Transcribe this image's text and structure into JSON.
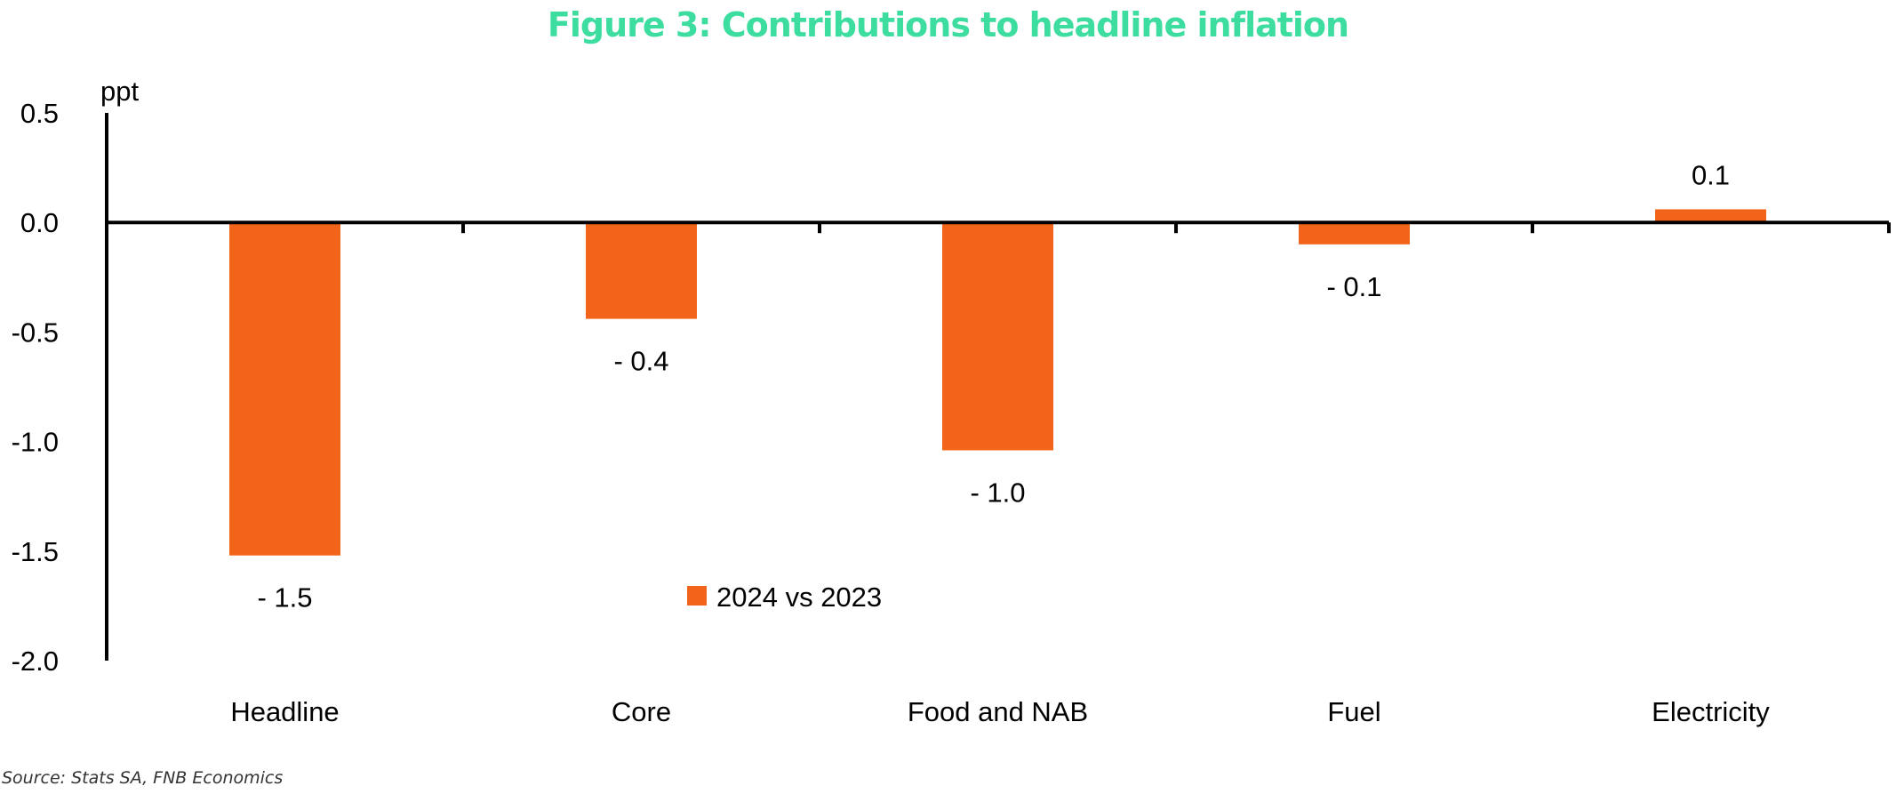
{
  "title": "Figure 3: Contributions to headline inflation",
  "source": "Source: Stats SA, FNB Economics",
  "chart_data": {
    "type": "bar",
    "title": "Figure 3: Contributions to headline inflation",
    "ylabel": "ppt",
    "xlabel": "",
    "categories": [
      "Headline",
      "Core",
      "Food and NAB",
      "Fuel",
      "Electricity"
    ],
    "series": [
      {
        "name": "2024 vs 2023",
        "values": [
          -1.52,
          -0.44,
          -1.04,
          -0.1,
          0.06
        ],
        "labels": [
          "- 1.5",
          "- 0.4",
          "- 1.0",
          "- 0.1",
          "0.1"
        ]
      }
    ],
    "ylim": [
      -2.0,
      0.5
    ],
    "yticks": [
      0.5,
      0.0,
      -0.5,
      -1.0,
      -1.5,
      -2.0
    ],
    "ytick_labels": [
      "0.5",
      "0.0",
      "-0.5",
      "-1.0",
      "-1.5",
      "-2.0"
    ],
    "grid": false,
    "legend_position": "bottom-center",
    "colors": {
      "bar": "#f26419",
      "title": "#3ddc9f",
      "axis": "#000000"
    }
  }
}
